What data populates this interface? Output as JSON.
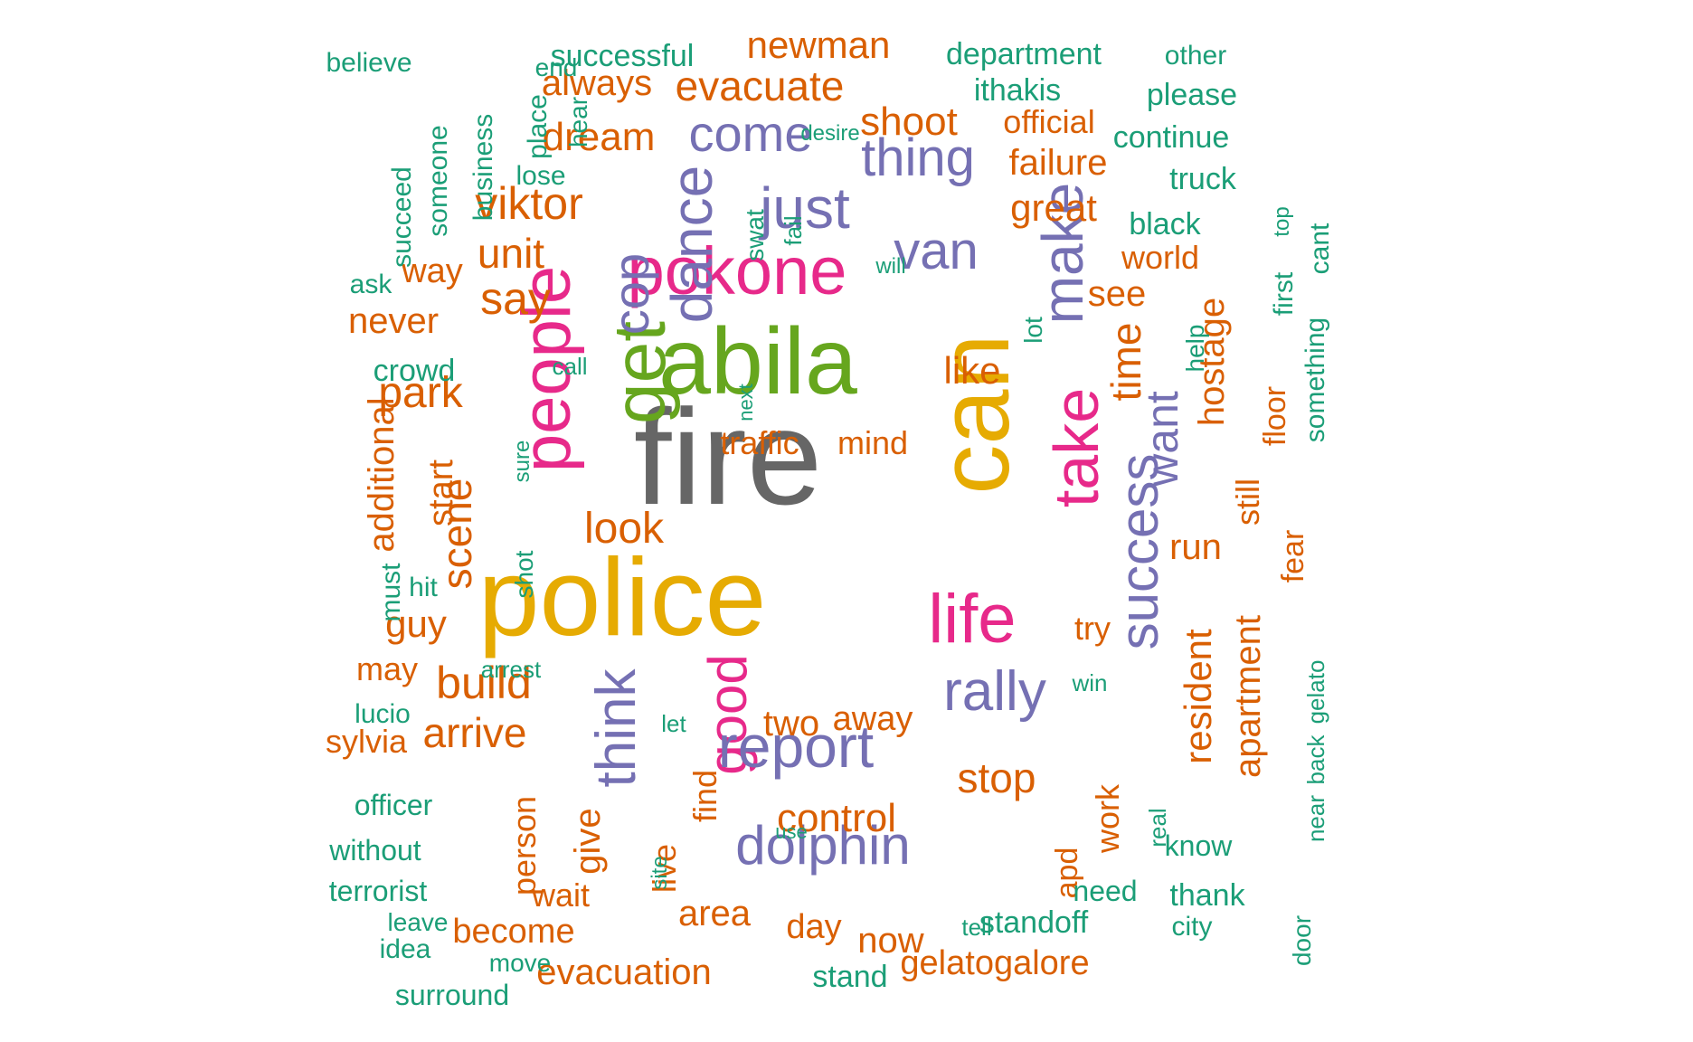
{
  "colors": {
    "teal": "#1b9e77",
    "orange": "#d95f02",
    "purple": "#7570b3",
    "pink": "#e7298a",
    "green": "#66a61e",
    "yellow": "#e6ab02",
    "gray": "#666666"
  },
  "words": [
    {
      "text": "fire",
      "color": "gray",
      "weight": 10
    },
    {
      "text": "police",
      "color": "yellow",
      "weight": 9
    },
    {
      "text": "can",
      "color": "yellow",
      "weight": 8
    },
    {
      "text": "abila",
      "color": "green",
      "weight": 7
    },
    {
      "text": "get",
      "color": "green",
      "weight": 6
    },
    {
      "text": "people",
      "color": "pink",
      "weight": 6
    },
    {
      "text": "pokone",
      "color": "pink",
      "weight": 6
    },
    {
      "text": "life",
      "color": "pink",
      "weight": 6
    },
    {
      "text": "take",
      "color": "pink",
      "weight": 6
    },
    {
      "text": "good",
      "color": "pink",
      "weight": 5
    },
    {
      "text": "make",
      "color": "purple",
      "weight": 5
    },
    {
      "text": "report",
      "color": "purple",
      "weight": 5
    },
    {
      "text": "success",
      "color": "purple",
      "weight": 5
    },
    {
      "text": "rally",
      "color": "purple",
      "weight": 5
    },
    {
      "text": "dolphin",
      "color": "purple",
      "weight": 5
    },
    {
      "text": "think",
      "color": "purple",
      "weight": 5
    },
    {
      "text": "dance",
      "color": "purple",
      "weight": 5
    },
    {
      "text": "just",
      "color": "purple",
      "weight": 5
    },
    {
      "text": "thing",
      "color": "purple",
      "weight": 5
    },
    {
      "text": "van",
      "color": "purple",
      "weight": 5
    },
    {
      "text": "come",
      "color": "purple",
      "weight": 5
    },
    {
      "text": "cop",
      "color": "purple",
      "weight": 5
    },
    {
      "text": "want",
      "color": "purple",
      "weight": 5
    },
    {
      "text": "viktor",
      "color": "orange",
      "weight": 4
    },
    {
      "text": "shoot",
      "color": "orange",
      "weight": 4
    },
    {
      "text": "evacuate",
      "color": "orange",
      "weight": 4
    },
    {
      "text": "newman",
      "color": "orange",
      "weight": 4
    },
    {
      "text": "dream",
      "color": "orange",
      "weight": 4
    },
    {
      "text": "always",
      "color": "orange",
      "weight": 4
    },
    {
      "text": "say",
      "color": "orange",
      "weight": 4
    },
    {
      "text": "unit",
      "color": "orange",
      "weight": 4
    },
    {
      "text": "look",
      "color": "orange",
      "weight": 4
    },
    {
      "text": "build",
      "color": "orange",
      "weight": 4
    },
    {
      "text": "arrive",
      "color": "orange",
      "weight": 4
    },
    {
      "text": "park",
      "color": "orange",
      "weight": 4
    },
    {
      "text": "scene",
      "color": "orange",
      "weight": 4
    },
    {
      "text": "stop",
      "color": "orange",
      "weight": 4
    },
    {
      "text": "control",
      "color": "orange",
      "weight": 4
    },
    {
      "text": "time",
      "color": "orange",
      "weight": 4
    },
    {
      "text": "great",
      "color": "orange",
      "weight": 4
    },
    {
      "text": "failure",
      "color": "orange",
      "weight": 4
    },
    {
      "text": "official",
      "color": "orange",
      "weight": 3
    },
    {
      "text": "like",
      "color": "orange",
      "weight": 4
    },
    {
      "text": "run",
      "color": "orange",
      "weight": 4
    },
    {
      "text": "resident",
      "color": "orange",
      "weight": 4
    },
    {
      "text": "apartment",
      "color": "orange",
      "weight": 4
    },
    {
      "text": "hostage",
      "color": "orange",
      "weight": 4
    },
    {
      "text": "see",
      "color": "orange",
      "weight": 4
    },
    {
      "text": "world",
      "color": "orange",
      "weight": 3
    },
    {
      "text": "still",
      "color": "orange",
      "weight": 3
    },
    {
      "text": "never",
      "color": "orange",
      "weight": 3
    },
    {
      "text": "way",
      "color": "orange",
      "weight": 3
    },
    {
      "text": "additional",
      "color": "orange",
      "weight": 3
    },
    {
      "text": "start",
      "color": "orange",
      "weight": 3
    },
    {
      "text": "guy",
      "color": "orange",
      "weight": 3
    },
    {
      "text": "may",
      "color": "orange",
      "weight": 3
    },
    {
      "text": "sylvia",
      "color": "orange",
      "weight": 3
    },
    {
      "text": "give",
      "color": "orange",
      "weight": 3
    },
    {
      "text": "person",
      "color": "orange",
      "weight": 3
    },
    {
      "text": "wait",
      "color": "orange",
      "weight": 3
    },
    {
      "text": "become",
      "color": "orange",
      "weight": 3
    },
    {
      "text": "evacuation",
      "color": "orange",
      "weight": 3
    },
    {
      "text": "area",
      "color": "orange",
      "weight": 3
    },
    {
      "text": "live",
      "color": "orange",
      "weight": 3
    },
    {
      "text": "find",
      "color": "orange",
      "weight": 3
    },
    {
      "text": "two",
      "color": "orange",
      "weight": 3
    },
    {
      "text": "away",
      "color": "orange",
      "weight": 3
    },
    {
      "text": "day",
      "color": "orange",
      "weight": 3
    },
    {
      "text": "now",
      "color": "orange",
      "weight": 3
    },
    {
      "text": "traffic",
      "color": "orange",
      "weight": 3
    },
    {
      "text": "mind",
      "color": "orange",
      "weight": 3
    },
    {
      "text": "try",
      "color": "orange",
      "weight": 3
    },
    {
      "text": "work",
      "color": "orange",
      "weight": 3
    },
    {
      "text": "apd",
      "color": "orange",
      "weight": 3
    },
    {
      "text": "gelatogalore",
      "color": "orange",
      "weight": 3
    },
    {
      "text": "floor",
      "color": "orange",
      "weight": 3
    },
    {
      "text": "fear",
      "color": "orange",
      "weight": 3
    },
    {
      "text": "believe",
      "color": "teal",
      "weight": 2
    },
    {
      "text": "end",
      "color": "teal",
      "weight": 2
    },
    {
      "text": "successful",
      "color": "teal",
      "weight": 2
    },
    {
      "text": "department",
      "color": "teal",
      "weight": 2
    },
    {
      "text": "other",
      "color": "teal",
      "weight": 2
    },
    {
      "text": "ithakis",
      "color": "teal",
      "weight": 2
    },
    {
      "text": "please",
      "color": "teal",
      "weight": 2
    },
    {
      "text": "continue",
      "color": "teal",
      "weight": 2
    },
    {
      "text": "truck",
      "color": "teal",
      "weight": 2
    },
    {
      "text": "black",
      "color": "teal",
      "weight": 2
    },
    {
      "text": "top",
      "color": "teal",
      "weight": 1
    },
    {
      "text": "cant",
      "color": "teal",
      "weight": 2
    },
    {
      "text": "first",
      "color": "teal",
      "weight": 2
    },
    {
      "text": "something",
      "color": "teal",
      "weight": 2
    },
    {
      "text": "help",
      "color": "teal",
      "weight": 2
    },
    {
      "text": "lot",
      "color": "teal",
      "weight": 2
    },
    {
      "text": "place",
      "color": "teal",
      "weight": 2
    },
    {
      "text": "hear",
      "color": "teal",
      "weight": 2
    },
    {
      "text": "someone",
      "color": "teal",
      "weight": 2
    },
    {
      "text": "business",
      "color": "teal",
      "weight": 2
    },
    {
      "text": "succeed",
      "color": "teal",
      "weight": 2
    },
    {
      "text": "lose",
      "color": "teal",
      "weight": 2
    },
    {
      "text": "desire",
      "color": "teal",
      "weight": 1
    },
    {
      "text": "swat",
      "color": "teal",
      "weight": 2
    },
    {
      "text": "fail",
      "color": "teal",
      "weight": 2
    },
    {
      "text": "will",
      "color": "teal",
      "weight": 1
    },
    {
      "text": "ask",
      "color": "teal",
      "weight": 2
    },
    {
      "text": "crowd",
      "color": "teal",
      "weight": 2
    },
    {
      "text": "call",
      "color": "teal",
      "weight": 1
    },
    {
      "text": "next",
      "color": "teal",
      "weight": 1
    },
    {
      "text": "sure",
      "color": "teal",
      "weight": 1
    },
    {
      "text": "must",
      "color": "teal",
      "weight": 2
    },
    {
      "text": "hit",
      "color": "teal",
      "weight": 2
    },
    {
      "text": "shot",
      "color": "teal",
      "weight": 2
    },
    {
      "text": "arrest",
      "color": "teal",
      "weight": 1
    },
    {
      "text": "lucio",
      "color": "teal",
      "weight": 2
    },
    {
      "text": "let",
      "color": "teal",
      "weight": 1
    },
    {
      "text": "officer",
      "color": "teal",
      "weight": 2
    },
    {
      "text": "without",
      "color": "teal",
      "weight": 2
    },
    {
      "text": "terrorist",
      "color": "teal",
      "weight": 2
    },
    {
      "text": "leave",
      "color": "teal",
      "weight": 2
    },
    {
      "text": "idea",
      "color": "teal",
      "weight": 2
    },
    {
      "text": "move",
      "color": "teal",
      "weight": 2
    },
    {
      "text": "surround",
      "color": "teal",
      "weight": 2
    },
    {
      "text": "site",
      "color": "teal",
      "weight": 1
    },
    {
      "text": "use",
      "color": "teal",
      "weight": 1
    },
    {
      "text": "stand",
      "color": "teal",
      "weight": 2
    },
    {
      "text": "tell",
      "color": "teal",
      "weight": 1
    },
    {
      "text": "standoff",
      "color": "teal",
      "weight": 2
    },
    {
      "text": "city",
      "color": "teal",
      "weight": 2
    },
    {
      "text": "need",
      "color": "teal",
      "weight": 2
    },
    {
      "text": "thank",
      "color": "teal",
      "weight": 2
    },
    {
      "text": "know",
      "color": "teal",
      "weight": 2
    },
    {
      "text": "door",
      "color": "teal",
      "weight": 2
    },
    {
      "text": "near",
      "color": "teal",
      "weight": 2
    },
    {
      "text": "back",
      "color": "teal",
      "weight": 2
    },
    {
      "text": "gelato",
      "color": "teal",
      "weight": 2
    },
    {
      "text": "win",
      "color": "teal",
      "weight": 2
    },
    {
      "text": "real",
      "color": "teal",
      "weight": 2
    }
  ]
}
